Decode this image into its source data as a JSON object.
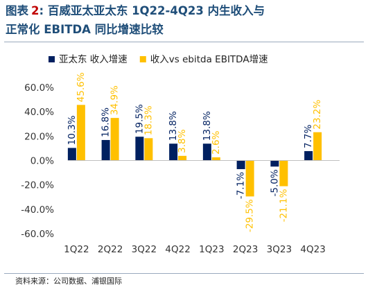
{
  "title": {
    "label": "图表",
    "number": "2",
    "line1": ": 百威亚太亚太东 1Q22-4Q23 内生收入与",
    "line2": "正常化 EBITDA 同比增速比较"
  },
  "source": "资料来源：公司数据、浦银国际",
  "chart_data": {
    "type": "bar",
    "categories": [
      "1Q22",
      "2Q22",
      "3Q22",
      "4Q22",
      "1Q23",
      "2Q23",
      "3Q23",
      "4Q23"
    ],
    "series": [
      {
        "name": "亚太东 收入增速",
        "values": [
          10.3,
          16.8,
          19.5,
          13.8,
          13.8,
          -7.1,
          -5.0,
          7.7
        ],
        "labels": [
          "10.3%",
          "16.8%",
          "19.5%",
          "13.8%",
          "13.8%",
          "-7.1%",
          "-5.0%",
          "7.7%"
        ],
        "color": "#002060"
      },
      {
        "name": "收入vs ebitda EBITDA增速",
        "values": [
          45.6,
          34.9,
          18.3,
          3.8,
          2.6,
          -29.5,
          -21.1,
          23.2
        ],
        "labels": [
          "45.6%",
          "34.9%",
          "18.3%",
          "3.8%",
          "2.6%",
          "-29.5%",
          "-21.1%",
          "23.2%"
        ],
        "color": "#ffc000"
      }
    ],
    "yticks": [
      60,
      40,
      20,
      0,
      -20,
      -40,
      -60
    ],
    "ytick_labels": [
      "60.0%",
      "40.0%",
      "20.0%",
      "0.0%",
      "-20.0%",
      "-40.0%",
      "-60.0%"
    ],
    "ylim": [
      -60,
      60
    ],
    "grid": false,
    "legend_position": "top-left"
  }
}
